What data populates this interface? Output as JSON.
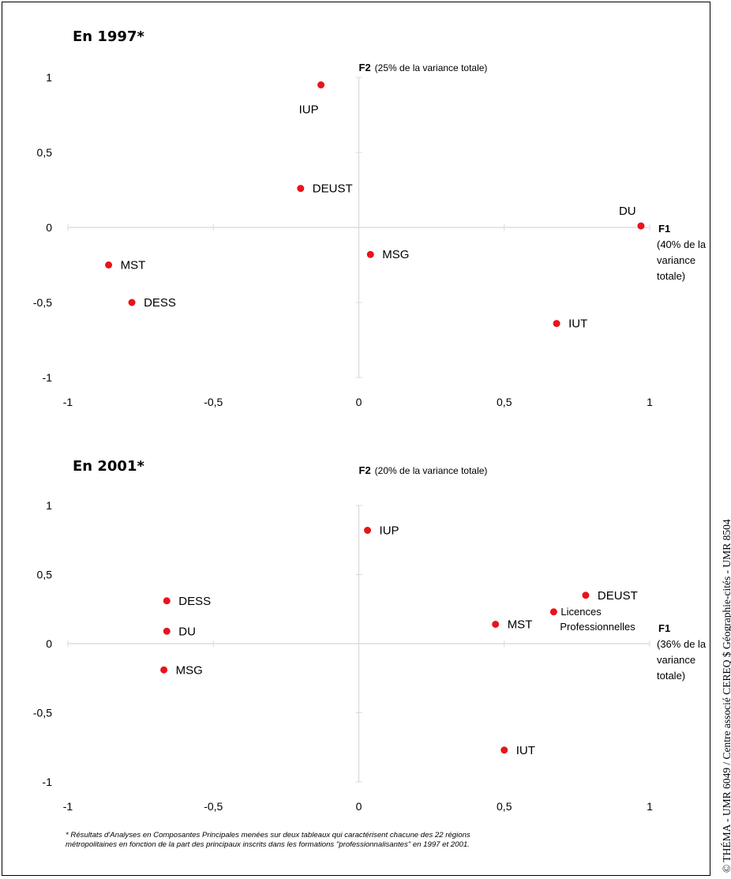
{
  "chart_data": [
    {
      "type": "scatter",
      "title": "En 1997*",
      "axes": {
        "f2_label": "F2",
        "f2_note": "(25% de la variance totale)",
        "f1_label": "F1",
        "f1_note": [
          "(40% de la",
          "variance",
          "totale)"
        ]
      },
      "xlim": [
        -1,
        1
      ],
      "ylim": [
        -1,
        1
      ],
      "xticks": [
        "-1",
        "-0,5",
        "0",
        "0,5",
        "1"
      ],
      "yticks": [
        "1",
        "0,5",
        "0",
        "-0,5",
        "-1"
      ],
      "grid": false,
      "point_color": "#e8141c",
      "points": [
        {
          "label": "IUP",
          "x": -0.13,
          "y": 0.95
        },
        {
          "label": "DEUST",
          "x": -0.2,
          "y": 0.26
        },
        {
          "label": "DU",
          "x": 0.97,
          "y": 0.01
        },
        {
          "label": "MSG",
          "x": 0.04,
          "y": -0.18
        },
        {
          "label": "MST",
          "x": -0.86,
          "y": -0.25
        },
        {
          "label": "DESS",
          "x": -0.78,
          "y": -0.5
        },
        {
          "label": "IUT",
          "x": 0.68,
          "y": -0.64
        }
      ]
    },
    {
      "type": "scatter",
      "title": "En 2001*",
      "axes": {
        "f2_label": "F2",
        "f2_note": "(20% de la variance totale)",
        "f1_label": "F1",
        "f1_note": [
          "(36% de la",
          "variance",
          "totale)"
        ]
      },
      "xlim": [
        -1,
        1
      ],
      "ylim": [
        -1,
        1
      ],
      "xticks": [
        "-1",
        "-0,5",
        "0",
        "0,5",
        "1"
      ],
      "yticks": [
        "1",
        "0,5",
        "0",
        "-0,5",
        "-1"
      ],
      "grid": false,
      "point_color": "#e8141c",
      "points": [
        {
          "label": "IUP",
          "x": 0.03,
          "y": 0.82
        },
        {
          "label": "DEUST",
          "x": 0.78,
          "y": 0.35
        },
        {
          "label": "DESS",
          "x": -0.66,
          "y": 0.31
        },
        {
          "label": "Licences Professionnelles",
          "label_lines": [
            "Licences",
            "Professionnelles"
          ],
          "x": 0.67,
          "y": 0.23
        },
        {
          "label": "MST",
          "x": 0.47,
          "y": 0.14
        },
        {
          "label": "DU",
          "x": -0.66,
          "y": 0.09
        },
        {
          "label": "MSG",
          "x": -0.67,
          "y": -0.19
        },
        {
          "label": "IUT",
          "x": 0.5,
          "y": -0.77
        }
      ]
    }
  ],
  "footnote": [
    "* Résultats d'Analyses en Composantes Principales menées sur deux tableaux qui caractérisent chacune des 22 régions",
    "métropolitaines en fonction de la part des principaux inscrits dans les formations \"professionnalisantes\" en 1997 et 2001."
  ],
  "credit": "© THÉMA - UMR 6049 / Centre associé CEREQ $ Géographie-cités - UMR 8504"
}
